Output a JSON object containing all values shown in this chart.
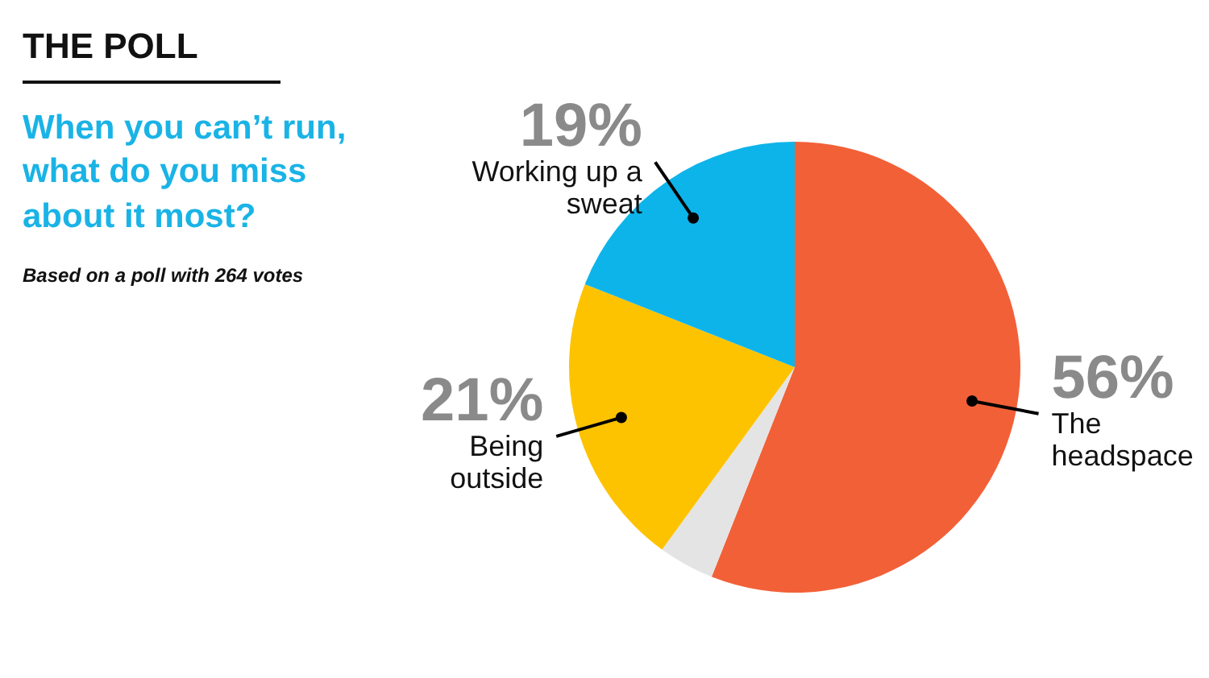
{
  "chart_data": {
    "type": "pie",
    "title": "THE POLL",
    "subtitle": "When you can’t run, what do you miss about it most?",
    "annotations": [
      "Based on a poll with 264 votes"
    ],
    "categories": [
      "The headspace",
      null,
      "Being outside",
      "Working up a sweat"
    ],
    "values": [
      56,
      4,
      21,
      19
    ],
    "colors": [
      "#f26038",
      "#e4e4e4",
      "#fdc300",
      "#0db4ea"
    ],
    "value_labels": [
      "56%",
      null,
      "21%",
      "19%"
    ]
  }
}
